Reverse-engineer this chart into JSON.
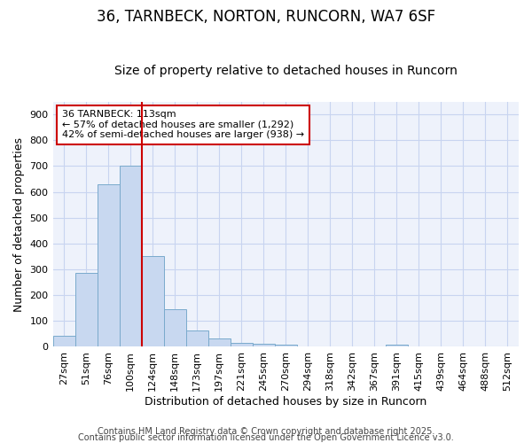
{
  "title": "36, TARNBECK, NORTON, RUNCORN, WA7 6SF",
  "subtitle": "Size of property relative to detached houses in Runcorn",
  "xlabel": "Distribution of detached houses by size in Runcorn",
  "ylabel": "Number of detached properties",
  "categories": [
    "27sqm",
    "51sqm",
    "76sqm",
    "100sqm",
    "124sqm",
    "148sqm",
    "173sqm",
    "197sqm",
    "221sqm",
    "245sqm",
    "270sqm",
    "294sqm",
    "318sqm",
    "342sqm",
    "367sqm",
    "391sqm",
    "415sqm",
    "439sqm",
    "464sqm",
    "488sqm",
    "512sqm"
  ],
  "values": [
    42,
    285,
    630,
    700,
    350,
    145,
    65,
    32,
    15,
    12,
    10,
    0,
    0,
    0,
    0,
    8,
    0,
    0,
    0,
    0,
    0
  ],
  "bar_color": "#c8d8f0",
  "bar_edge_color": "#7aaacc",
  "vline_x": 3.5,
  "vline_color": "#cc0000",
  "ylim": [
    0,
    950
  ],
  "yticks": [
    0,
    100,
    200,
    300,
    400,
    500,
    600,
    700,
    800,
    900
  ],
  "annotation_title": "36 TARNBECK: 113sqm",
  "annotation_line1": "← 57% of detached houses are smaller (1,292)",
  "annotation_line2": "42% of semi-detached houses are larger (938) →",
  "annotation_box_color": "#ffffff",
  "annotation_box_edge": "#cc0000",
  "bg_color": "#ffffff",
  "plot_bg_color": "#eef2fb",
  "grid_color": "#c8d4f0",
  "footer1": "Contains HM Land Registry data © Crown copyright and database right 2025.",
  "footer2": "Contains public sector information licensed under the Open Government Licence v3.0.",
  "title_fontsize": 12,
  "subtitle_fontsize": 10,
  "axis_label_fontsize": 9,
  "tick_fontsize": 8,
  "footer_fontsize": 7
}
